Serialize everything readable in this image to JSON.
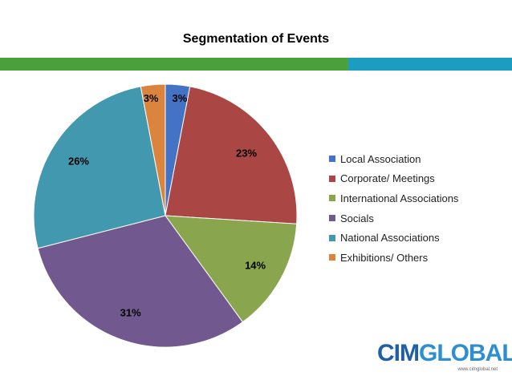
{
  "colors": {
    "accent_green": "#4aa03a",
    "accent_blue": "#1c9dc0",
    "slice_colors": [
      "#4472c4",
      "#aa4643",
      "#89a54e",
      "#71588f",
      "#4198af",
      "#db843d"
    ]
  },
  "logo": {
    "text": "CIMGLOBAL",
    "url": "www.cimglobal.net"
  },
  "chart_data": {
    "type": "pie",
    "title": "Segmentation of Events",
    "categories": [
      "Local Association",
      "Corporate/ Meetings",
      "International Associations",
      "Socials",
      "National Associations",
      "Exhibitions/ Others"
    ],
    "values": [
      3,
      23,
      14,
      31,
      26,
      3
    ],
    "labels": [
      "3%",
      "23%",
      "14%",
      "31%",
      "26%",
      "3%"
    ],
    "legend_position": "right"
  }
}
